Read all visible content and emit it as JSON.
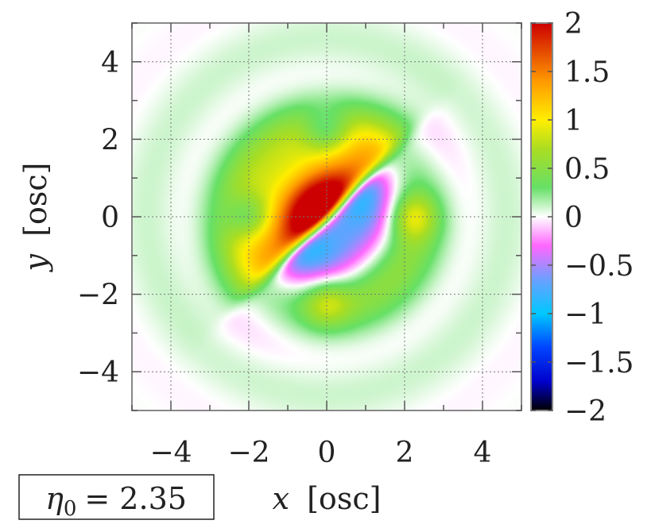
{
  "chart_data": {
    "type": "heatmap",
    "xlabel_var": "x",
    "xlabel_unit": "[osc]",
    "ylabel_var": "y",
    "ylabel_unit": "[osc]",
    "xlim": [
      -5,
      5
    ],
    "ylim": [
      -5,
      5
    ],
    "x_ticks": [
      -4,
      -2,
      0,
      2,
      4
    ],
    "x_tick_labels": [
      "−4",
      "−2",
      "0",
      "2",
      "4"
    ],
    "y_ticks": [
      -4,
      -2,
      0,
      2,
      4
    ],
    "y_tick_labels": [
      "−4",
      "−2",
      "0",
      "2",
      "4"
    ],
    "grid": true,
    "colorbar": {
      "range": [
        -2,
        2
      ],
      "ticks": [
        2,
        1.5,
        1,
        0.5,
        0,
        -0.5,
        -1,
        -1.5,
        -2
      ],
      "tick_labels": [
        "2",
        "1.5",
        "1",
        "0.5",
        "0",
        "−0.5",
        "−1",
        "−1.5",
        "−2"
      ],
      "colormap": [
        {
          "v": -2.0,
          "color": "#000000"
        },
        {
          "v": -1.7,
          "color": "#0000cc"
        },
        {
          "v": -1.35,
          "color": "#0044ff"
        },
        {
          "v": -1.0,
          "color": "#00c8ff"
        },
        {
          "v": -0.65,
          "color": "#6aa0ff"
        },
        {
          "v": -0.3,
          "color": "#ff66ff"
        },
        {
          "v": 0.0,
          "color": "#ffffff"
        },
        {
          "v": 0.3,
          "color": "#66e066"
        },
        {
          "v": 0.7,
          "color": "#aadd22"
        },
        {
          "v": 1.0,
          "color": "#ffee00"
        },
        {
          "v": 1.4,
          "color": "#ff9900"
        },
        {
          "v": 2.0,
          "color": "#cc0000"
        }
      ]
    },
    "annotation": {
      "symbol": "η",
      "subscript": "0",
      "value": "= 2.35"
    }
  }
}
